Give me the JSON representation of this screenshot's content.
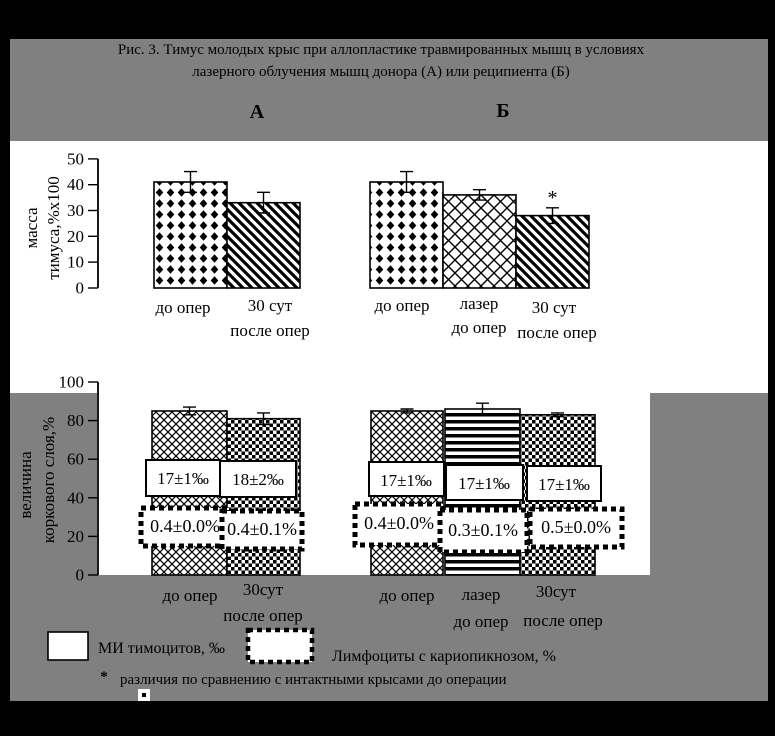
{
  "figure": {
    "title_line1": "Рис. 3. Тимус  молодых крыс при аллопластике травмированных мышц  в условиях",
    "title_line2": "лазерного облучения мышц донора (А) или реципиента (Б)",
    "panel_a": "А",
    "panel_b": "Б"
  },
  "chart_data": [
    {
      "id": "thymus-mass",
      "type": "bar",
      "ylabel": "масса тимуса,%х100",
      "ylabel_lines": [
        "масса",
        "тимуса,%х100"
      ],
      "ylim": [
        0,
        50
      ],
      "yticks": [
        0,
        10,
        20,
        30,
        40,
        50
      ],
      "grid": false,
      "groups": [
        {
          "panel": "А",
          "categories": [
            "до опер",
            "30 сут после опер"
          ],
          "values": [
            41,
            33
          ],
          "errors": [
            4,
            4
          ],
          "patterns": [
            "diamond-grid",
            "diagonal-lines"
          ]
        },
        {
          "panel": "Б",
          "categories": [
            "до опер",
            "лазер до опер",
            "30 сут после опер"
          ],
          "values": [
            41,
            36,
            28
          ],
          "errors": [
            4,
            2,
            3
          ],
          "significance": [
            "",
            "",
            "*"
          ],
          "patterns": [
            "diamond-grid",
            "diagonal-crosshatch",
            "diagonal-lines"
          ]
        }
      ]
    },
    {
      "id": "cortical-layer",
      "type": "bar",
      "ylabel": "величина коркового слоя,%",
      "ylabel_lines": [
        "величина",
        "коркового слоя,%"
      ],
      "ylim": [
        0,
        100
      ],
      "yticks": [
        0,
        20,
        40,
        60,
        80,
        100
      ],
      "grid": false,
      "groups": [
        {
          "panel": "А",
          "categories": [
            "до опер",
            "30сут после опер"
          ],
          "values": [
            85,
            81
          ],
          "errors": [
            2,
            3
          ],
          "mi_labels": [
            "17±1‰",
            "18±2‰"
          ],
          "karyo_labels": [
            "0.4±0.0%",
            "0.4±0.1%"
          ],
          "patterns": [
            "diagonal-weave",
            "small-checker"
          ]
        },
        {
          "panel": "Б",
          "categories": [
            "до опер",
            "лазер до опер",
            "30сут после опер"
          ],
          "values": [
            85,
            86,
            83
          ],
          "errors": [
            1,
            3,
            1
          ],
          "mi_labels": [
            "17±1‰",
            "17±1‰",
            "17±1‰"
          ],
          "karyo_labels": [
            "0.4±0.0%",
            "0.3±0.1%",
            "0.5±0.0%"
          ],
          "patterns": [
            "diagonal-weave",
            "horizontal-lines",
            "small-checker"
          ]
        }
      ]
    }
  ],
  "xticks": {
    "top_a": [
      [
        "до опер"
      ],
      [
        "30 сут",
        "после опер"
      ]
    ],
    "top_b": [
      [
        "до опер"
      ],
      [
        "лазер",
        "до опер"
      ],
      [
        "30 сут",
        "после опер"
      ]
    ],
    "bottom_a": [
      [
        "до опер"
      ],
      [
        "30сут",
        "после опер"
      ]
    ],
    "bottom_b": [
      [
        "до опер"
      ],
      [
        "лазер",
        "до опер"
      ],
      [
        "30сут",
        "после опер"
      ]
    ]
  },
  "legend": {
    "mi": "МИ тимоцитов, ‰",
    "karyo": "Лимфоциты с кариопикнозом, %",
    "star": "*",
    "footnote": "различия по сравнению с интактными крысами до операции"
  },
  "colors": {
    "band_gray": "#808080",
    "frame_black": "#000000",
    "plot_white": "#ffffff"
  }
}
